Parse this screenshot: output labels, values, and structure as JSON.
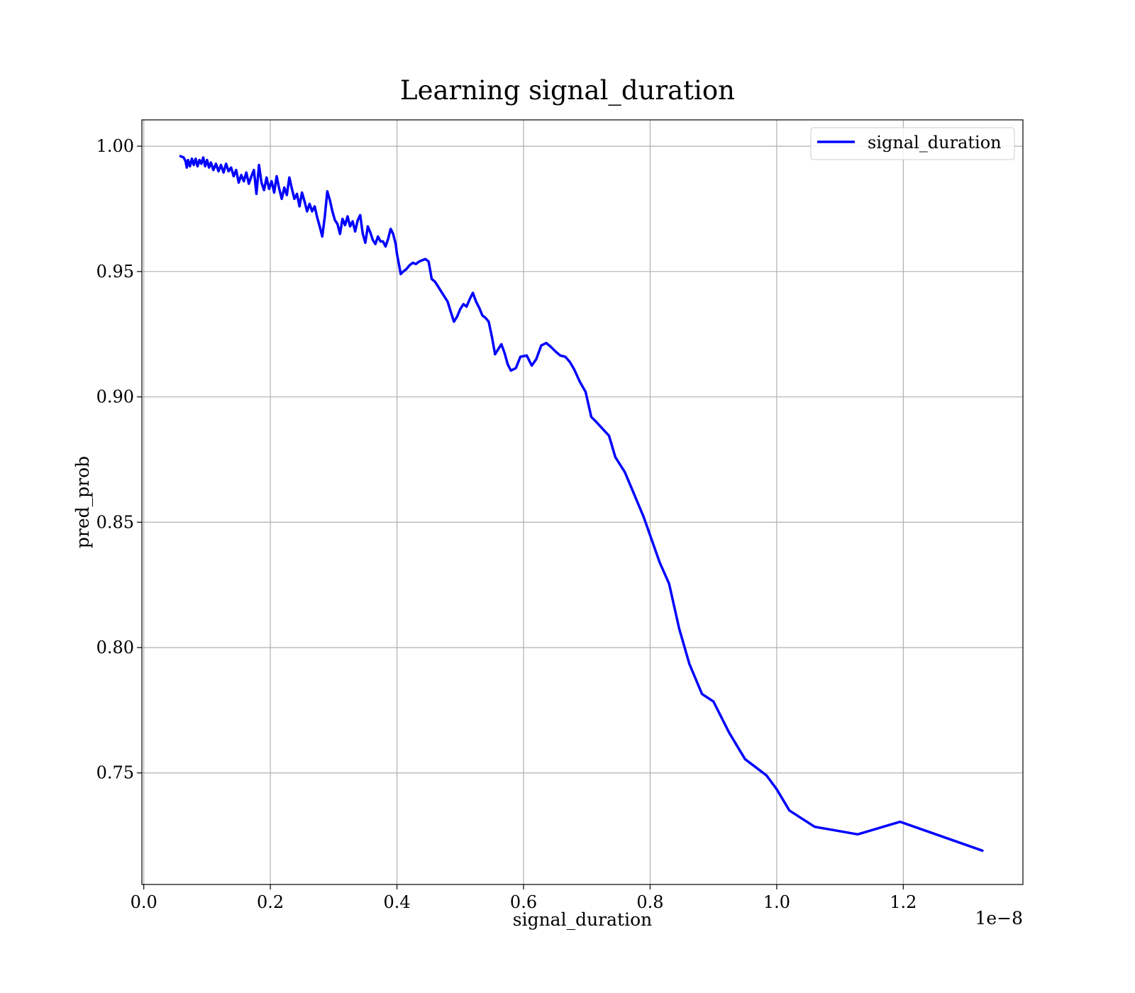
{
  "chart_data": {
    "type": "line",
    "title": "Learning signal_duration",
    "xlabel": "signal_duration",
    "ylabel": "pred_prob",
    "x_offset_text": "1e−8",
    "x_scale_exponent": -8,
    "xlim": [
      -3e-11,
      1.389e-08
    ],
    "ylim": [
      0.7055,
      1.0105
    ],
    "xticks": [
      0.0,
      2e-09,
      4e-09,
      6e-09,
      8e-09,
      1e-08,
      1.2e-08
    ],
    "xtick_labels": [
      "0.0",
      "0.2",
      "0.4",
      "0.6",
      "0.8",
      "1.0",
      "1.2"
    ],
    "yticks": [
      0.75,
      0.8,
      0.85,
      0.9,
      0.95,
      1.0
    ],
    "ytick_labels": [
      "0.75",
      "0.80",
      "0.85",
      "0.90",
      "0.95",
      "1.00"
    ],
    "grid": true,
    "legend_position": "top-right",
    "series": [
      {
        "name": "signal_duration",
        "color": "#0000ff",
        "x": [
          5.8e-10,
          6.3e-10,
          6.6e-10,
          6.8e-10,
          7e-10,
          7.3e-10,
          7.6e-10,
          7.9e-10,
          8.2e-10,
          8.5e-10,
          8.8e-10,
          9.1e-10,
          9.4e-10,
          9.7e-10,
          1e-09,
          1.03e-09,
          1.06e-09,
          1.1e-09,
          1.14e-09,
          1.18e-09,
          1.22e-09,
          1.26e-09,
          1.3e-09,
          1.34e-09,
          1.38e-09,
          1.42e-09,
          1.46e-09,
          1.5e-09,
          1.54e-09,
          1.58e-09,
          1.62e-09,
          1.66e-09,
          1.7e-09,
          1.74e-09,
          1.78e-09,
          1.82e-09,
          1.86e-09,
          1.9e-09,
          1.94e-09,
          1.98e-09,
          2.02e-09,
          2.06e-09,
          2.1e-09,
          2.14e-09,
          2.18e-09,
          2.22e-09,
          2.26e-09,
          2.3e-09,
          2.34e-09,
          2.38e-09,
          2.42e-09,
          2.46e-09,
          2.5e-09,
          2.54e-09,
          2.58e-09,
          2.62e-09,
          2.66e-09,
          2.7e-09,
          2.74e-09,
          2.78e-09,
          2.82e-09,
          2.86e-09,
          2.9e-09,
          2.94e-09,
          2.98e-09,
          3.02e-09,
          3.06e-09,
          3.1e-09,
          3.14e-09,
          3.18e-09,
          3.22e-09,
          3.26e-09,
          3.3e-09,
          3.34e-09,
          3.38e-09,
          3.42e-09,
          3.46e-09,
          3.5e-09,
          3.54e-09,
          3.58e-09,
          3.62e-09,
          3.66e-09,
          3.7e-09,
          3.74e-09,
          3.78e-09,
          3.82e-09,
          3.86e-09,
          3.9e-09,
          3.94e-09,
          3.98e-09,
          4e-09,
          4.03e-09,
          4.06e-09,
          4.1e-09,
          4.15e-09,
          4.2e-09,
          4.25e-09,
          4.3e-09,
          4.35e-09,
          4.4e-09,
          4.45e-09,
          4.5e-09,
          4.55e-09,
          4.6e-09,
          4.65e-09,
          4.7e-09,
          4.75e-09,
          4.8e-09,
          4.85e-09,
          4.9e-09,
          4.95e-09,
          5e-09,
          5.05e-09,
          5.1e-09,
          5.15e-09,
          5.2e-09,
          5.25e-09,
          5.3e-09,
          5.35e-09,
          5.4e-09,
          5.45e-09,
          5.5e-09,
          5.55e-09,
          5.6e-09,
          5.65e-09,
          5.7e-09,
          5.75e-09,
          5.8e-09,
          5.88e-09,
          5.95e-09,
          6.05e-09,
          6.13e-09,
          6.2e-09,
          6.28e-09,
          6.36e-09,
          6.43e-09,
          6.51e-09,
          6.58e-09,
          6.66e-09,
          6.73e-09,
          6.8e-09,
          6.89e-09,
          6.98e-09,
          7.07e-09,
          7.15e-09,
          7.35e-09,
          7.45e-09,
          7.6e-09,
          7.75e-09,
          7.9e-09,
          8.15e-09,
          8.3e-09,
          8.46e-09,
          8.62e-09,
          8.82e-09,
          9e-09,
          9.25e-09,
          9.5e-09,
          9.84e-09,
          1e-08,
          1.02e-08,
          1.06e-08,
          1.128e-08,
          1.195e-08,
          1.325e-08
        ],
        "y": [
          0.996,
          0.9955,
          0.994,
          0.9915,
          0.9945,
          0.992,
          0.995,
          0.9925,
          0.995,
          0.992,
          0.9945,
          0.993,
          0.9955,
          0.992,
          0.9945,
          0.9915,
          0.9935,
          0.9905,
          0.993,
          0.99,
          0.9925,
          0.9895,
          0.993,
          0.99,
          0.9915,
          0.988,
          0.9905,
          0.9855,
          0.9885,
          0.986,
          0.9895,
          0.985,
          0.988,
          0.9905,
          0.981,
          0.9925,
          0.9855,
          0.9825,
          0.9875,
          0.983,
          0.986,
          0.9815,
          0.988,
          0.983,
          0.979,
          0.9835,
          0.9805,
          0.9875,
          0.983,
          0.979,
          0.981,
          0.976,
          0.9815,
          0.978,
          0.974,
          0.977,
          0.974,
          0.976,
          0.9715,
          0.968,
          0.964,
          0.972,
          0.982,
          0.9785,
          0.974,
          0.9705,
          0.969,
          0.965,
          0.971,
          0.9685,
          0.972,
          0.968,
          0.97,
          0.966,
          0.9705,
          0.9725,
          0.965,
          0.9615,
          0.968,
          0.9655,
          0.9625,
          0.961,
          0.964,
          0.962,
          0.962,
          0.96,
          0.963,
          0.967,
          0.965,
          0.961,
          0.957,
          0.953,
          0.949,
          0.95,
          0.951,
          0.9525,
          0.9535,
          0.953,
          0.954,
          0.9545,
          0.955,
          0.954,
          0.947,
          0.946,
          0.944,
          0.942,
          0.94,
          0.938,
          0.934,
          0.93,
          0.932,
          0.935,
          0.937,
          0.936,
          0.939,
          0.9415,
          0.938,
          0.9355,
          0.9325,
          0.9315,
          0.93,
          0.924,
          0.917,
          0.919,
          0.921,
          0.9175,
          0.913,
          0.9105,
          0.9115,
          0.916,
          0.9165,
          0.9125,
          0.915,
          0.9205,
          0.9215,
          0.92,
          0.918,
          0.9165,
          0.916,
          0.914,
          0.911,
          0.906,
          0.902,
          0.892,
          0.89,
          0.8845,
          0.876,
          0.87,
          0.861,
          0.852,
          0.834,
          0.8255,
          0.8075,
          0.7935,
          0.7815,
          0.7785,
          0.766,
          0.7555,
          0.749,
          0.7435,
          0.735,
          0.7285,
          0.7255,
          0.7305,
          0.719
        ]
      }
    ]
  }
}
